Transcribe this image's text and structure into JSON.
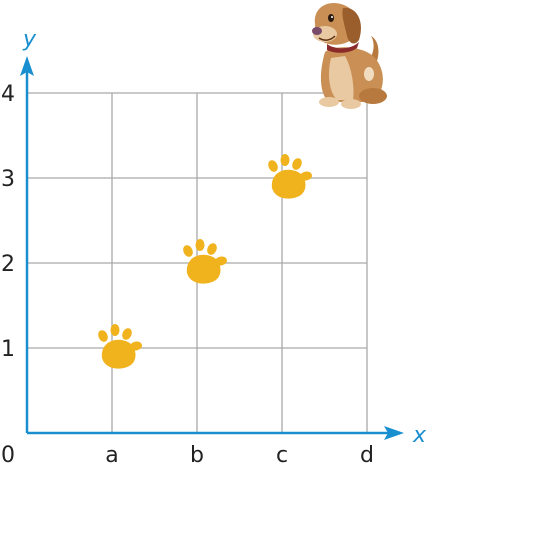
{
  "chart_data": {
    "type": "scatter",
    "title": "",
    "xlabel": "x",
    "ylabel": "y",
    "x_categories": [
      "a",
      "b",
      "c",
      "d"
    ],
    "y_ticks": [
      "1",
      "2",
      "3",
      "4"
    ],
    "origin_label": "0",
    "ylim": [
      0,
      4
    ],
    "grid": true,
    "points": [
      {
        "x": "a",
        "y": 1
      },
      {
        "x": "b",
        "y": 2
      },
      {
        "x": "c",
        "y": 3
      }
    ]
  },
  "colors": {
    "axis": "#1a8fd0",
    "grid": "#a9a9a9",
    "paw": "#f0b21d",
    "dog_body": "#c98f55",
    "dog_light": "#e8c9a2"
  },
  "marker_icon": "paw-print-icon",
  "decoration_icon": "dog-icon"
}
